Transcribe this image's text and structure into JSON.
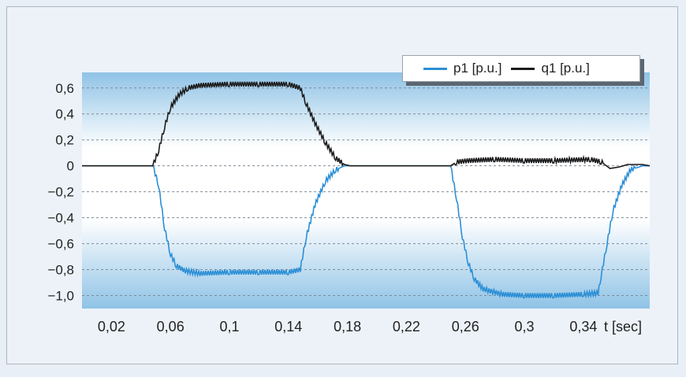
{
  "chart_data": {
    "type": "line",
    "title": "",
    "xlabel": "t [sec]",
    "ylabel": "",
    "xlim": [
      0,
      0.385
    ],
    "ylim": [
      -1.1,
      0.72
    ],
    "x_ticks": [
      {
        "value": 0.02,
        "label": "0,02"
      },
      {
        "value": 0.06,
        "label": "0,06"
      },
      {
        "value": 0.1,
        "label": "0,1"
      },
      {
        "value": 0.14,
        "label": "0,14"
      },
      {
        "value": 0.18,
        "label": "0,18"
      },
      {
        "value": 0.22,
        "label": "0,22"
      },
      {
        "value": 0.26,
        "label": "0,26"
      },
      {
        "value": 0.3,
        "label": "0,3"
      },
      {
        "value": 0.34,
        "label": "0,34"
      }
    ],
    "y_ticks": [
      {
        "value": 0.6,
        "label": "0,6"
      },
      {
        "value": 0.4,
        "label": "0,4"
      },
      {
        "value": 0.2,
        "label": "0,2"
      },
      {
        "value": 0.0,
        "label": "0"
      },
      {
        "value": -0.2,
        "label": "−0,2"
      },
      {
        "value": -0.4,
        "label": "−0,4"
      },
      {
        "value": -0.6,
        "label": "−0,6"
      },
      {
        "value": -0.8,
        "label": "−0,8"
      },
      {
        "value": -1.0,
        "label": "−1,0"
      }
    ],
    "grid": true,
    "legend_position": "top-right",
    "series": [
      {
        "name": "p1 [p.u.]",
        "color": "#2b8fd6",
        "points": [
          [
            0.0,
            0.0
          ],
          [
            0.048,
            0.0
          ],
          [
            0.052,
            -0.15
          ],
          [
            0.056,
            -0.48
          ],
          [
            0.06,
            -0.68
          ],
          [
            0.064,
            -0.77
          ],
          [
            0.07,
            -0.81
          ],
          [
            0.08,
            -0.83
          ],
          [
            0.1,
            -0.82
          ],
          [
            0.12,
            -0.82
          ],
          [
            0.14,
            -0.82
          ],
          [
            0.148,
            -0.8
          ],
          [
            0.152,
            -0.55
          ],
          [
            0.158,
            -0.3
          ],
          [
            0.165,
            -0.12
          ],
          [
            0.172,
            -0.03
          ],
          [
            0.178,
            0.0
          ],
          [
            0.25,
            0.0
          ],
          [
            0.254,
            -0.25
          ],
          [
            0.258,
            -0.55
          ],
          [
            0.262,
            -0.75
          ],
          [
            0.266,
            -0.87
          ],
          [
            0.272,
            -0.95
          ],
          [
            0.285,
            -0.99
          ],
          [
            0.3,
            -1.0
          ],
          [
            0.32,
            -1.0
          ],
          [
            0.34,
            -0.99
          ],
          [
            0.35,
            -0.98
          ],
          [
            0.352,
            -0.85
          ],
          [
            0.356,
            -0.6
          ],
          [
            0.36,
            -0.35
          ],
          [
            0.366,
            -0.15
          ],
          [
            0.372,
            -0.03
          ],
          [
            0.38,
            0.0
          ],
          [
            0.385,
            0.0
          ]
        ]
      },
      {
        "name": "q1 [p.u.]",
        "color": "#1c1c1c",
        "points": [
          [
            0.0,
            0.0
          ],
          [
            0.048,
            0.0
          ],
          [
            0.052,
            0.12
          ],
          [
            0.056,
            0.3
          ],
          [
            0.06,
            0.45
          ],
          [
            0.066,
            0.55
          ],
          [
            0.072,
            0.6
          ],
          [
            0.08,
            0.62
          ],
          [
            0.1,
            0.63
          ],
          [
            0.12,
            0.63
          ],
          [
            0.14,
            0.63
          ],
          [
            0.148,
            0.6
          ],
          [
            0.152,
            0.48
          ],
          [
            0.158,
            0.33
          ],
          [
            0.165,
            0.18
          ],
          [
            0.172,
            0.06
          ],
          [
            0.178,
            0.01
          ],
          [
            0.182,
            0.0
          ],
          [
            0.25,
            0.0
          ],
          [
            0.254,
            0.03
          ],
          [
            0.262,
            0.04
          ],
          [
            0.28,
            0.05
          ],
          [
            0.3,
            0.04
          ],
          [
            0.32,
            0.04
          ],
          [
            0.345,
            0.05
          ],
          [
            0.352,
            0.03
          ],
          [
            0.358,
            -0.02
          ],
          [
            0.364,
            -0.01
          ],
          [
            0.37,
            0.01
          ],
          [
            0.38,
            0.01
          ],
          [
            0.385,
            0.0
          ]
        ]
      }
    ]
  },
  "colors": {
    "plot_top": "#8fc3e6",
    "plot_mid": "#ffffff",
    "plot_bottom": "#8fc3e6",
    "grid": "#7f8a95"
  }
}
